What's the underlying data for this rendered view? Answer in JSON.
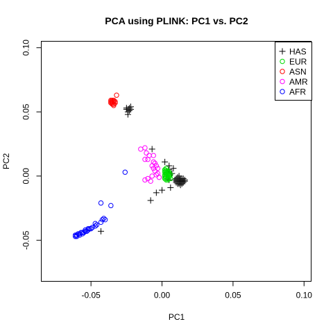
{
  "chart_data": {
    "type": "scatter",
    "title": "PCA using PLINK: PC1 vs. PC2",
    "xlabel": "PC1",
    "ylabel": "PC2",
    "xlim": [
      -0.085,
      0.105
    ],
    "ylim": [
      -0.082,
      0.105
    ],
    "x_ticks": [
      -0.05,
      0.0,
      0.05,
      0.1
    ],
    "x_tick_labels": [
      "-0.05",
      "0.00",
      "0.05",
      "0.10"
    ],
    "y_ticks": [
      -0.05,
      0.0,
      0.05,
      0.1
    ],
    "y_tick_labels": [
      "-0.05",
      "0.00",
      "0.05",
      "0.10"
    ],
    "grid": false,
    "legend_position": "top-right",
    "series": [
      {
        "name": "HAS",
        "marker": "plus",
        "color": "#000000",
        "points": [
          [
            -0.025,
            0.053
          ],
          [
            -0.024,
            0.052
          ],
          [
            -0.023,
            0.051
          ],
          [
            -0.024,
            0.05
          ],
          [
            -0.022,
            0.054
          ],
          [
            -0.023,
            0.052
          ],
          [
            -0.024,
            0.048
          ],
          [
            -0.023,
            0.053
          ],
          [
            -0.025,
            0.052
          ],
          [
            -0.022,
            0.052
          ],
          [
            -0.007,
            0.021
          ],
          [
            0.002,
            0.011
          ],
          [
            0.005,
            0.008
          ],
          [
            0.005,
            0.005
          ],
          [
            0.008,
            0.006
          ],
          [
            0.004,
            0.003
          ],
          [
            0.007,
            0.002
          ],
          [
            0.005,
            -0.003
          ],
          [
            0.006,
            -0.009
          ],
          [
            0.0,
            -0.011
          ],
          [
            -0.004,
            -0.013
          ],
          [
            -0.008,
            -0.019
          ],
          [
            -0.043,
            -0.043
          ],
          [
            0.01,
            -0.003
          ],
          [
            0.011,
            -0.004
          ],
          [
            0.012,
            -0.002
          ],
          [
            0.013,
            -0.005
          ],
          [
            0.014,
            -0.003
          ],
          [
            0.015,
            -0.004
          ],
          [
            0.012,
            -0.006
          ],
          [
            0.011,
            -0.005
          ],
          [
            0.01,
            -0.004
          ],
          [
            0.013,
            -0.002
          ],
          [
            0.014,
            -0.005
          ],
          [
            0.016,
            -0.003
          ],
          [
            0.012,
            -0.004
          ],
          [
            0.011,
            -0.003
          ],
          [
            0.013,
            -0.004
          ],
          [
            0.015,
            -0.005
          ],
          [
            0.014,
            -0.002
          ],
          [
            0.012,
            0.0
          ],
          [
            0.01,
            -0.002
          ],
          [
            0.013,
            -0.007
          ],
          [
            0.011,
            -0.006
          ],
          [
            0.009,
            -0.003
          ],
          [
            0.014,
            -0.004
          ],
          [
            0.016,
            -0.004
          ],
          [
            0.012,
            -0.003
          ],
          [
            0.013,
            -0.003
          ],
          [
            0.015,
            -0.002
          ],
          [
            0.011,
            -0.001
          ],
          [
            0.01,
            -0.005
          ],
          [
            0.014,
            -0.006
          ],
          [
            0.012,
            -0.005
          ]
        ]
      },
      {
        "name": "EUR",
        "marker": "circle",
        "color": "#00dd00",
        "points": [
          [
            0.002,
            0.005
          ],
          [
            0.003,
            0.004
          ],
          [
            0.002,
            0.003
          ],
          [
            0.003,
            0.002
          ],
          [
            0.004,
            0.003
          ],
          [
            0.003,
            0.001
          ],
          [
            0.002,
            0.0
          ],
          [
            0.004,
            0.001
          ],
          [
            0.005,
            0.002
          ],
          [
            0.003,
            -0.001
          ],
          [
            0.002,
            -0.002
          ],
          [
            0.004,
            -0.002
          ],
          [
            0.005,
            0.0
          ],
          [
            0.003,
            0.006
          ],
          [
            0.002,
            0.004
          ],
          [
            0.004,
            0.004
          ],
          [
            0.003,
            -0.003
          ],
          [
            0.005,
            -0.001
          ],
          [
            0.006,
            0.001
          ],
          [
            0.002,
            0.001
          ],
          [
            0.004,
            -0.003
          ],
          [
            0.003,
            0.003
          ],
          [
            0.005,
            0.003
          ],
          [
            0.002,
            -0.001
          ],
          [
            0.006,
            -0.002
          ]
        ]
      },
      {
        "name": "ASN",
        "marker": "circle",
        "color": "#ff0000",
        "points": [
          [
            -0.036,
            0.058
          ],
          [
            -0.035,
            0.057
          ],
          [
            -0.034,
            0.059
          ],
          [
            -0.035,
            0.056
          ],
          [
            -0.036,
            0.057
          ],
          [
            -0.034,
            0.058
          ],
          [
            -0.035,
            0.059
          ],
          [
            -0.033,
            0.057
          ],
          [
            -0.036,
            0.059
          ],
          [
            -0.034,
            0.056
          ],
          [
            -0.035,
            0.058
          ],
          [
            -0.033,
            0.058
          ],
          [
            -0.034,
            0.055
          ],
          [
            -0.032,
            0.063
          ]
        ]
      },
      {
        "name": "AMR",
        "marker": "circle",
        "color": "#ff00ff",
        "points": [
          [
            -0.015,
            0.021
          ],
          [
            -0.012,
            0.022
          ],
          [
            -0.011,
            0.018
          ],
          [
            -0.01,
            0.013
          ],
          [
            -0.012,
            0.013
          ],
          [
            -0.009,
            0.016
          ],
          [
            -0.006,
            0.016
          ],
          [
            -0.005,
            0.01
          ],
          [
            -0.007,
            0.008
          ],
          [
            -0.004,
            0.008
          ],
          [
            -0.006,
            0.006
          ],
          [
            -0.005,
            0.004
          ],
          [
            -0.003,
            0.006
          ],
          [
            -0.007,
            0.0
          ],
          [
            -0.01,
            -0.002
          ],
          [
            -0.012,
            -0.003
          ],
          [
            -0.008,
            -0.004
          ],
          [
            -0.004,
            0.001
          ],
          [
            -0.003,
            0.002
          ],
          [
            -0.002,
            -0.001
          ],
          [
            -0.006,
            0.011
          ]
        ]
      },
      {
        "name": "AFR",
        "marker": "circle",
        "color": "#0000ff",
        "points": [
          [
            -0.026,
            0.003
          ],
          [
            -0.043,
            -0.021
          ],
          [
            -0.036,
            -0.023
          ],
          [
            -0.041,
            -0.033
          ],
          [
            -0.042,
            -0.034
          ],
          [
            -0.04,
            -0.034
          ],
          [
            -0.043,
            -0.036
          ],
          [
            -0.047,
            -0.037
          ],
          [
            -0.046,
            -0.038
          ],
          [
            -0.047,
            -0.039
          ],
          [
            -0.049,
            -0.04
          ],
          [
            -0.05,
            -0.041
          ],
          [
            -0.051,
            -0.041
          ],
          [
            -0.052,
            -0.042
          ],
          [
            -0.053,
            -0.043
          ],
          [
            -0.054,
            -0.043
          ],
          [
            -0.055,
            -0.044
          ],
          [
            -0.056,
            -0.044
          ],
          [
            -0.057,
            -0.044
          ],
          [
            -0.058,
            -0.045
          ],
          [
            -0.059,
            -0.045
          ],
          [
            -0.06,
            -0.046
          ],
          [
            -0.061,
            -0.046
          ],
          [
            -0.061,
            -0.047
          ],
          [
            -0.06,
            -0.047
          ],
          [
            -0.058,
            -0.046
          ],
          [
            -0.056,
            -0.045
          ],
          [
            -0.054,
            -0.042
          ],
          [
            -0.052,
            -0.041
          ]
        ]
      }
    ]
  }
}
